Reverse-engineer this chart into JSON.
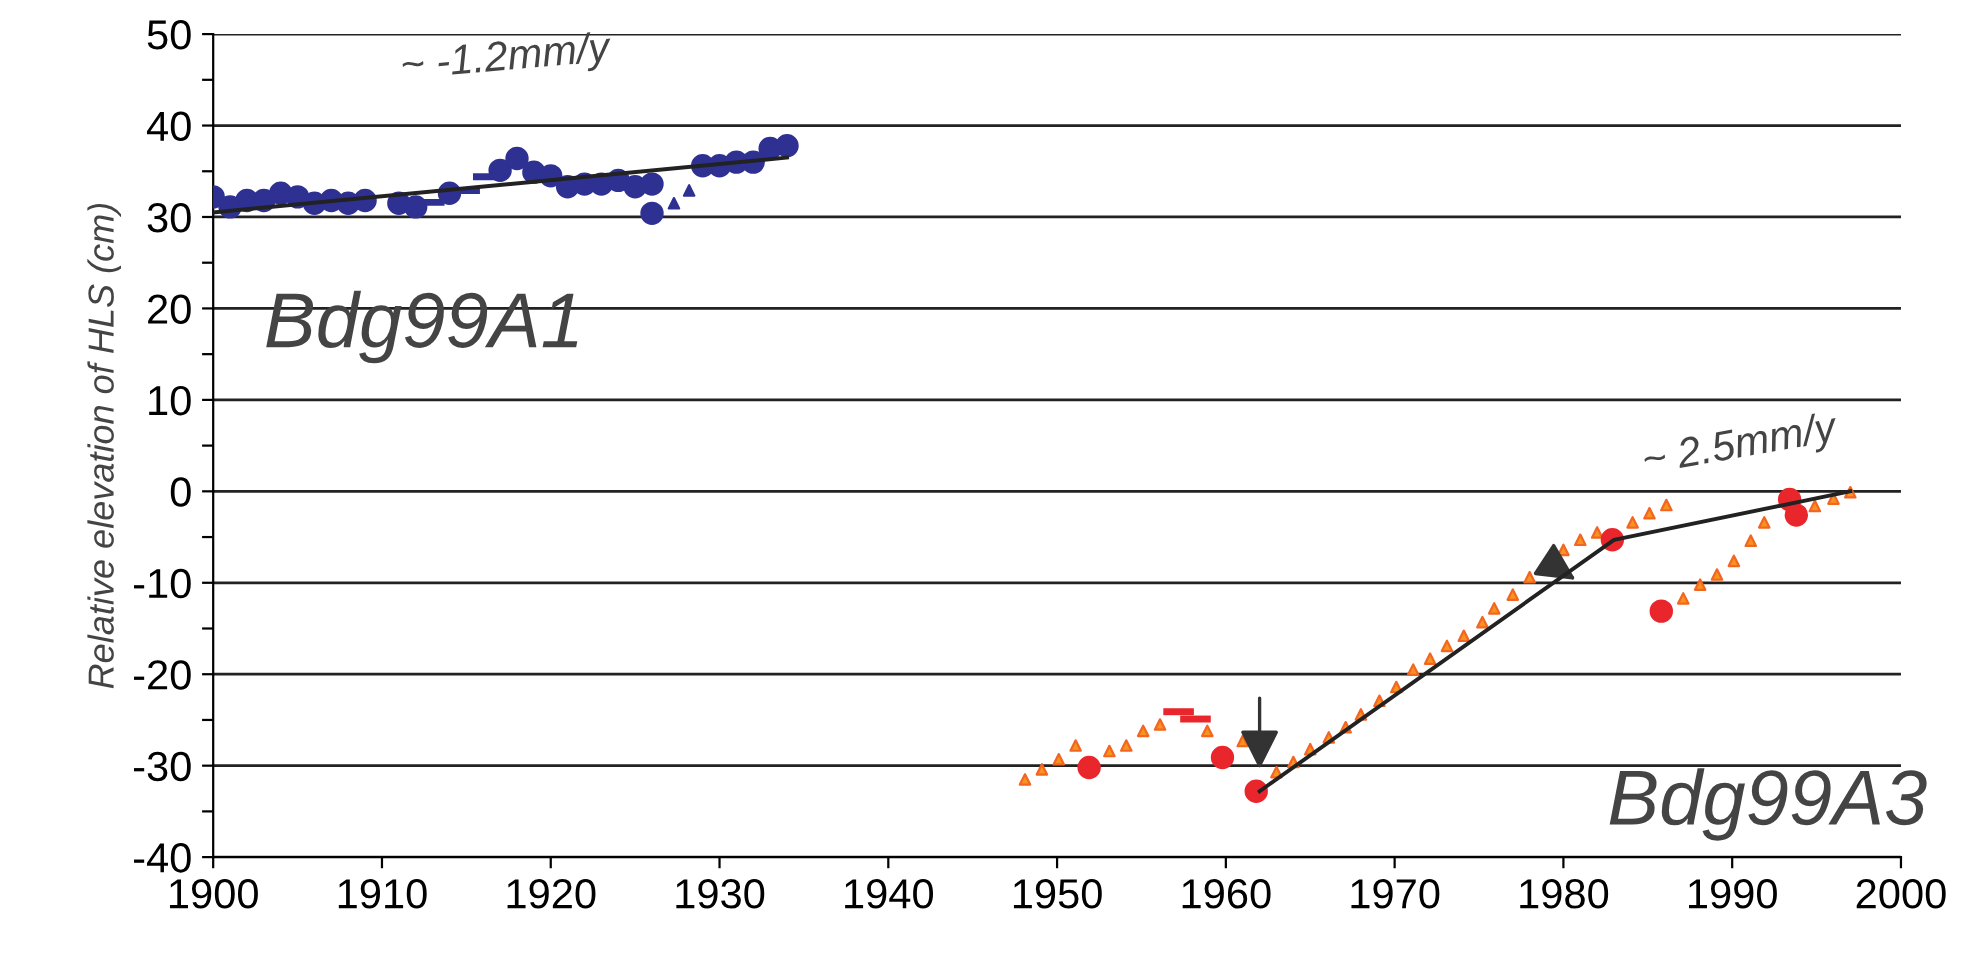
{
  "chart_data": {
    "type": "scatter",
    "ylabel": "Relative elevation of HLS (cm)",
    "xlim": [
      1900,
      2000
    ],
    "ylim": [
      -40,
      50
    ],
    "xticks": [
      1900,
      1910,
      1920,
      1930,
      1940,
      1950,
      1960,
      1970,
      1980,
      1990,
      2000
    ],
    "yticks": [
      -40,
      {
        "value": -35,
        "label": null
      },
      -30,
      {
        "value": -25,
        "label": null
      },
      -20,
      {
        "value": -15,
        "label": null
      },
      -10,
      {
        "value": -5,
        "label": null
      },
      0,
      {
        "value": 5,
        "label": null
      },
      10,
      {
        "value": 15,
        "label": null
      },
      20,
      {
        "value": 25,
        "label": null
      },
      30,
      {
        "value": 35,
        "label": null
      },
      40,
      {
        "value": 45,
        "label": null
      },
      50
    ],
    "grid": "y",
    "legend": false,
    "series": [
      {
        "marker": "circle",
        "color": "#2e3192",
        "x": [
          1900,
          1901,
          1902,
          1903,
          1904,
          1905,
          1906,
          1907,
          1908,
          1909,
          1911,
          1912,
          1914,
          1917,
          1918,
          1919,
          1920,
          1921,
          1922,
          1923,
          1924,
          1925,
          1926,
          1926,
          1929,
          1930,
          1931,
          1932,
          1933,
          1934
        ],
        "values": [
          32.2,
          31.1,
          31.8,
          31.8,
          32.6,
          32.2,
          31.5,
          31.8,
          31.5,
          31.8,
          31.5,
          31.1,
          32.6,
          35.1,
          36.4,
          34.9,
          34.5,
          33.3,
          33.6,
          33.6,
          34.0,
          33.3,
          33.6,
          30.4,
          35.6,
          35.6,
          36.0,
          36.0,
          37.5,
          37.8
        ]
      },
      {
        "type": "line",
        "marker": "none",
        "line_style": "solid",
        "color": "#2e3192",
        "x": [
          1912.5,
          1913.5
        ],
        "values": [
          31.6,
          31.6
        ]
      },
      {
        "type": "line",
        "marker": "none",
        "line_style": "solid",
        "color": "#2e3192",
        "x": [
          1914.5,
          1915.6
        ],
        "values": [
          32.9,
          32.9
        ]
      },
      {
        "type": "line",
        "marker": "none",
        "line_style": "solid",
        "color": "#2e3192",
        "x": [
          1915.6,
          1917
        ],
        "values": [
          34.4,
          34.4
        ]
      },
      {
        "marker": "triangle",
        "color": "#2e3192",
        "x": [
          1927.3,
          1928.2
        ],
        "values": [
          31.5,
          32.9
        ]
      },
      {
        "type": "line",
        "marker": "none",
        "line_style": "solid",
        "color": "#222222",
        "x": [
          1900,
          1934
        ],
        "values": [
          30.5,
          36.5
        ]
      },
      {
        "marker": "triangle",
        "color": "#f26522",
        "x": [
          1948.1,
          1949.1,
          1950.1,
          1951.1,
          1953.1,
          1954.1,
          1955.1,
          1956.1,
          1958.9,
          1961.0,
          1963,
          1964,
          1965,
          1966.1,
          1967.1,
          1968.0,
          1969.1,
          1970.1,
          1971.1,
          1972.1,
          1973.1,
          1974.1,
          1975.2,
          1975.9,
          1977,
          1978,
          1980,
          1981,
          1982,
          1984.1,
          1985.1,
          1986.1,
          1987.1,
          1988.1,
          1989.1,
          1990.1,
          1991.1,
          1991.9,
          1994.9,
          1996,
          1997
        ],
        "values": [
          -31.5,
          -30.4,
          -29.3,
          -27.8,
          -28.4,
          -27.8,
          -26.2,
          -25.5,
          -26.2,
          -27.3,
          -30.7,
          -29.6,
          -28.2,
          -26.9,
          -25.8,
          -24.4,
          -22.9,
          -21.4,
          -19.5,
          -18.3,
          -16.9,
          -15.8,
          -14.3,
          -12.8,
          -11.3,
          -9.4,
          -6.4,
          -5.3,
          -4.5,
          -3.4,
          -2.4,
          -1.5,
          -11.7,
          -10.2,
          -9.1,
          -7.6,
          -5.4,
          -3.4,
          -1.6,
          -0.8,
          -0.1
        ]
      },
      {
        "type": "line",
        "marker": "none",
        "line_style": "solid",
        "color": "#e8262b",
        "x": [
          1956.5,
          1957.9
        ],
        "values": [
          -24.1,
          -24.1
        ]
      },
      {
        "type": "line",
        "marker": "none",
        "line_style": "solid",
        "color": "#e8262b",
        "x": [
          1957.5,
          1958.9
        ],
        "values": [
          -24.9,
          -24.9
        ]
      },
      {
        "marker": "circle",
        "color": "#e8262b",
        "x": [
          1951.9,
          1959.8,
          1961.8,
          1982.9,
          1985.8,
          1993.4,
          1993.8
        ],
        "values": [
          -30.2,
          -29.1,
          -32.8,
          -5.3,
          -13.1,
          -0.9,
          -2.6
        ]
      },
      {
        "type": "line",
        "marker": "none",
        "line_style": "solid",
        "color": "#222222",
        "x": [
          1962,
          1983,
          1997
        ],
        "values": [
          -32.8,
          -5.3,
          0
        ]
      }
    ],
    "annotations": [
      "~ -1.2mm/y",
      "~ 2.5mm/y",
      "Bdg99A1",
      "Bdg99A3"
    ]
  }
}
